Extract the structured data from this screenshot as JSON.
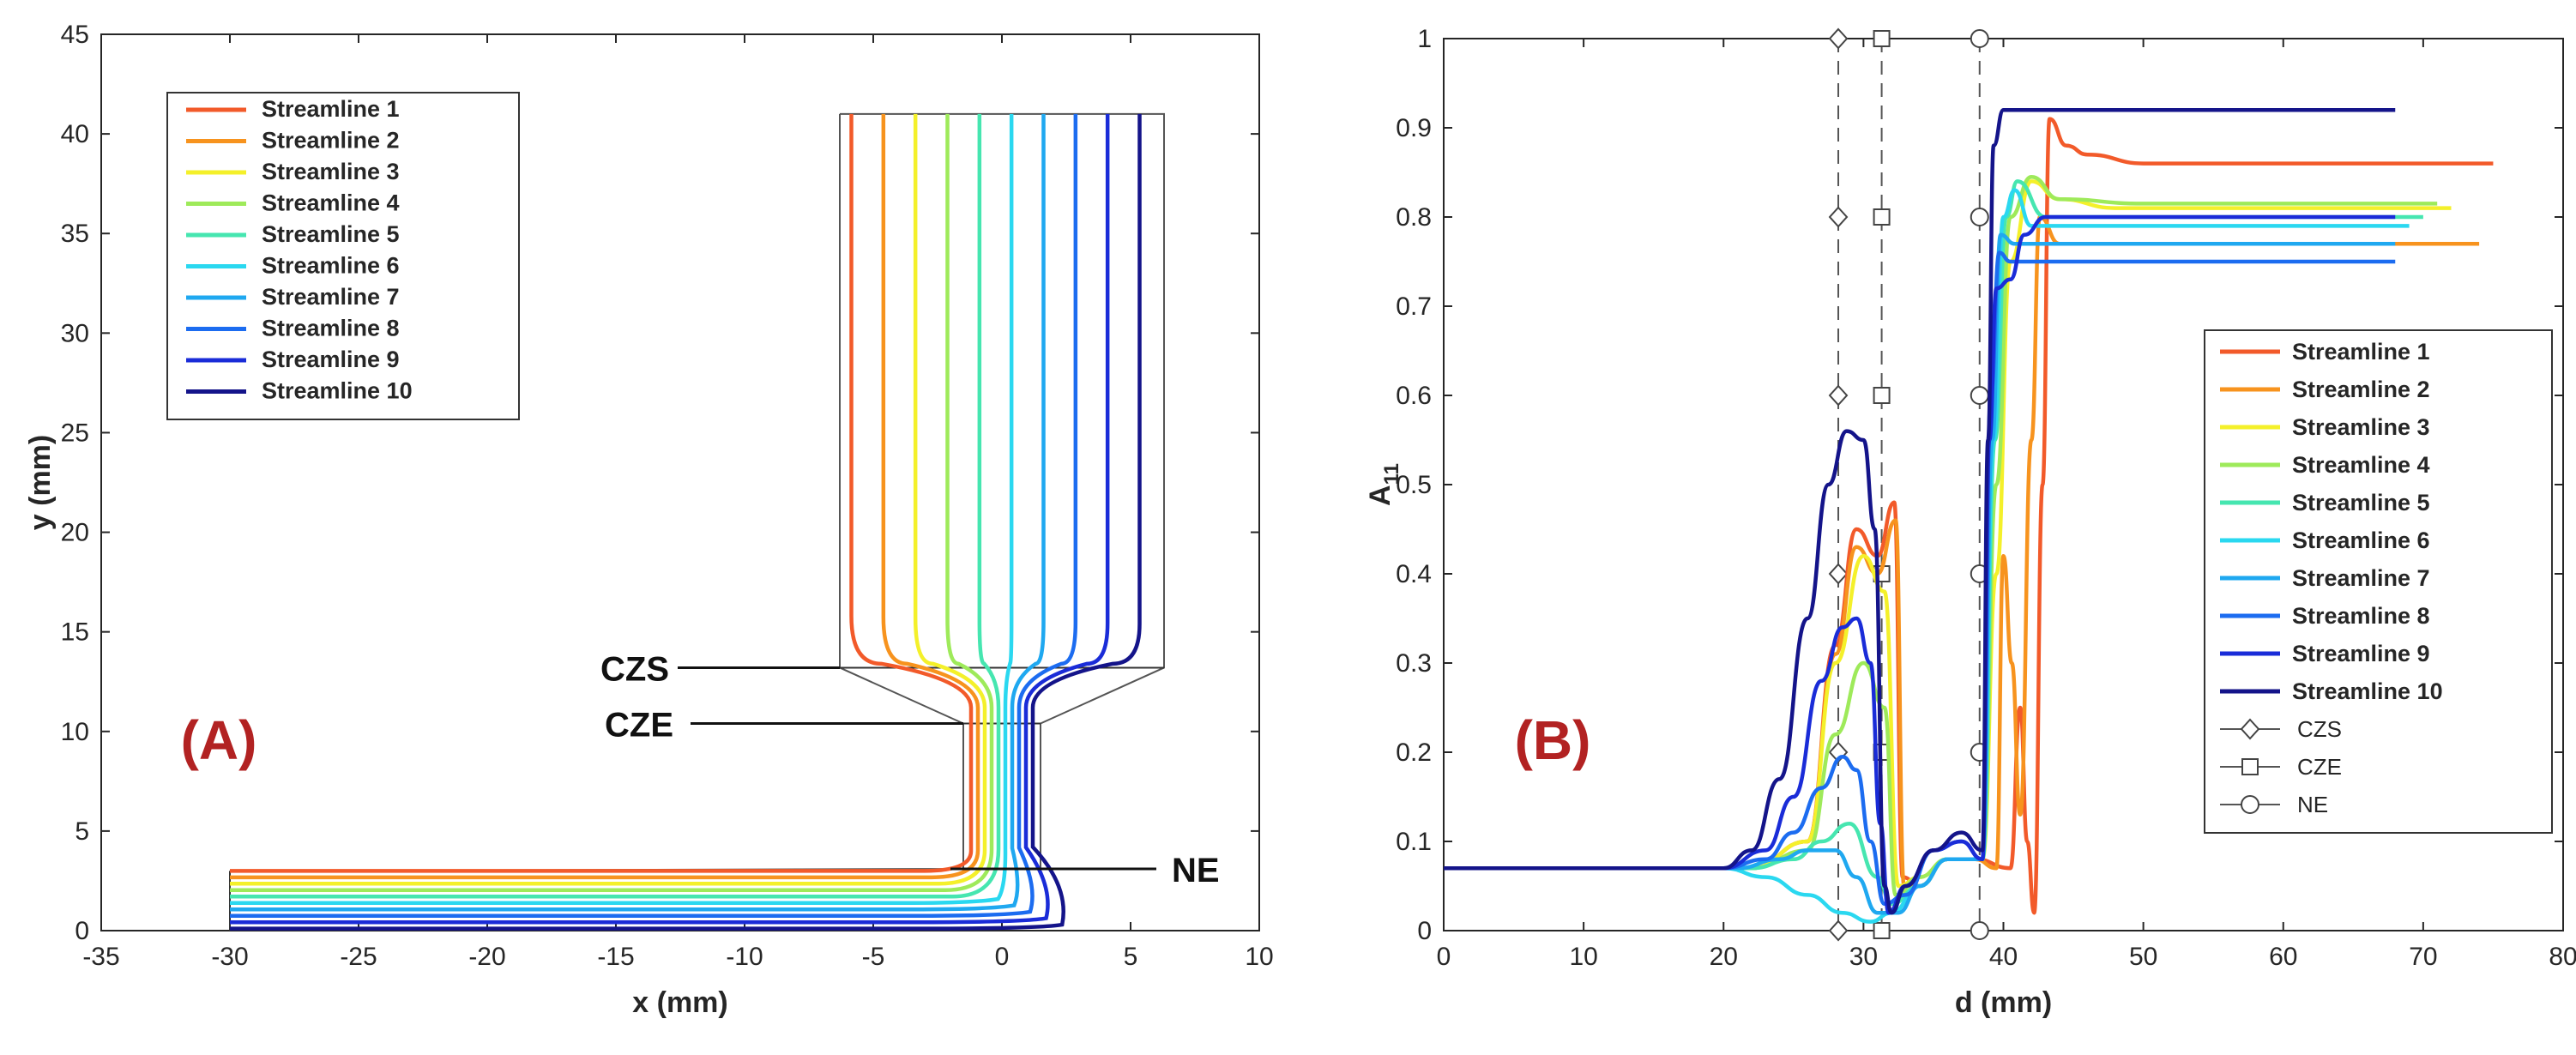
{
  "colors": {
    "streamlines": [
      "#f25a2a",
      "#f7931e",
      "#f4f02a",
      "#9eea5a",
      "#46e6b0",
      "#2ad8f0",
      "#1fa8f0",
      "#1c6cf0",
      "#1a2cd8",
      "#14148a"
    ],
    "panel_label": "#b22222",
    "axes": "#262626"
  },
  "chart_data": [
    {
      "type": "line",
      "panel_label": "(A)",
      "xlabel": "x (mm)",
      "ylabel": "y (mm)",
      "xlim": [
        -35,
        10
      ],
      "ylim": [
        0,
        45
      ],
      "xticks": [
        "-35",
        "-30",
        "-25",
        "-20",
        "-15",
        "-10",
        "-5",
        "0",
        "5",
        "10"
      ],
      "yticks": [
        "0",
        "5",
        "10",
        "15",
        "20",
        "25",
        "30",
        "35",
        "40",
        "45"
      ],
      "legend_position": "top-left",
      "series_names": [
        "Streamline 1",
        "Streamline 2",
        "Streamline 3",
        "Streamline 4",
        "Streamline 5",
        "Streamline 6",
        "Streamline 7",
        "Streamline 8",
        "Streamline 9",
        "Streamline 10"
      ],
      "geometry": {
        "reservoir_x": [
          -6.3,
          6.3
        ],
        "reservoir_top": 41,
        "reservoir_bottom": 13.2,
        "nozzle_x": [
          -1.5,
          1.5
        ],
        "nozzle_top": 10.4,
        "nozzle_bottom": 3.1,
        "channel_x": [
          -30,
          2
        ],
        "channel_y": [
          0,
          3
        ]
      },
      "annotations": [
        {
          "text": "CZS",
          "y": 13.2
        },
        {
          "text": "CZE",
          "y": 10.4
        },
        {
          "text": "NE",
          "y": 3.1
        }
      ]
    },
    {
      "type": "line",
      "panel_label": "(B)",
      "xlabel": "d (mm)",
      "ylabel": "A",
      "ylabel_sub": "11",
      "xlim": [
        0,
        80
      ],
      "ylim": [
        0,
        1
      ],
      "xticks": [
        "0",
        "10",
        "20",
        "30",
        "40",
        "50",
        "60",
        "70",
        "80"
      ],
      "yticks": [
        "0",
        "0.1",
        "0.2",
        "0.3",
        "0.4",
        "0.5",
        "0.6",
        "0.7",
        "0.8",
        "0.9",
        "1"
      ],
      "legend_position": "right",
      "series": [
        {
          "name": "Streamline 1",
          "points": [
            [
              0,
              0.07
            ],
            [
              22,
              0.07
            ],
            [
              26,
              0.1
            ],
            [
              28,
              0.32
            ],
            [
              29.5,
              0.45
            ],
            [
              31,
              0.42
            ],
            [
              32.2,
              0.48
            ],
            [
              32.8,
              0.06
            ],
            [
              34,
              0.05
            ],
            [
              36,
              0.08
            ],
            [
              38,
              0.08
            ],
            [
              40.5,
              0.07
            ],
            [
              41.2,
              0.25
            ],
            [
              41.7,
              0.1
            ],
            [
              42.2,
              0.02
            ],
            [
              42.8,
              0.5
            ],
            [
              43.3,
              0.91
            ],
            [
              44.5,
              0.88
            ],
            [
              46,
              0.87
            ],
            [
              50,
              0.86
            ],
            [
              75,
              0.86
            ]
          ]
        },
        {
          "name": "Streamline 2",
          "points": [
            [
              0,
              0.07
            ],
            [
              22,
              0.07
            ],
            [
              26,
              0.1
            ],
            [
              28,
              0.31
            ],
            [
              29.5,
              0.43
            ],
            [
              31,
              0.4
            ],
            [
              32.3,
              0.46
            ],
            [
              32.9,
              0.05
            ],
            [
              34,
              0.05
            ],
            [
              36,
              0.08
            ],
            [
              38,
              0.08
            ],
            [
              39.5,
              0.07
            ],
            [
              40,
              0.42
            ],
            [
              40.6,
              0.3
            ],
            [
              41.2,
              0.13
            ],
            [
              42,
              0.55
            ],
            [
              42.6,
              0.8
            ],
            [
              44,
              0.77
            ],
            [
              50,
              0.77
            ],
            [
              68,
              0.77
            ],
            [
              74,
              0.77
            ]
          ]
        },
        {
          "name": "Streamline 3",
          "points": [
            [
              0,
              0.07
            ],
            [
              22,
              0.07
            ],
            [
              26,
              0.1
            ],
            [
              28,
              0.3
            ],
            [
              30,
              0.42
            ],
            [
              31.5,
              0.38
            ],
            [
              32.5,
              0.05
            ],
            [
              34,
              0.06
            ],
            [
              36,
              0.08
            ],
            [
              38.5,
              0.08
            ],
            [
              39.5,
              0.4
            ],
            [
              40.5,
              0.75
            ],
            [
              42,
              0.84
            ],
            [
              44,
              0.82
            ],
            [
              48,
              0.81
            ],
            [
              72,
              0.81
            ]
          ]
        },
        {
          "name": "Streamline 4",
          "points": [
            [
              0,
              0.07
            ],
            [
              22,
              0.07
            ],
            [
              26,
              0.09
            ],
            [
              28,
              0.22
            ],
            [
              30,
              0.3
            ],
            [
              31.5,
              0.25
            ],
            [
              32.3,
              0.04
            ],
            [
              34,
              0.06
            ],
            [
              36,
              0.08
            ],
            [
              38.5,
              0.08
            ],
            [
              39.5,
              0.5
            ],
            [
              40.5,
              0.8
            ],
            [
              42,
              0.845
            ],
            [
              44,
              0.82
            ],
            [
              50,
              0.815
            ],
            [
              71,
              0.815
            ]
          ]
        },
        {
          "name": "Streamline 5",
          "points": [
            [
              0,
              0.07
            ],
            [
              22,
              0.07
            ],
            [
              25,
              0.08
            ],
            [
              27,
              0.1
            ],
            [
              29,
              0.12
            ],
            [
              31,
              0.06
            ],
            [
              32,
              0.03
            ],
            [
              34,
              0.05
            ],
            [
              36,
              0.08
            ],
            [
              38.5,
              0.08
            ],
            [
              39.4,
              0.55
            ],
            [
              40.2,
              0.8
            ],
            [
              41,
              0.84
            ],
            [
              43,
              0.8
            ],
            [
              50,
              0.8
            ],
            [
              70,
              0.8
            ]
          ]
        },
        {
          "name": "Streamline 6",
          "points": [
            [
              0,
              0.07
            ],
            [
              20,
              0.07
            ],
            [
              23,
              0.06
            ],
            [
              26,
              0.04
            ],
            [
              28.5,
              0.02
            ],
            [
              30.5,
              0.01
            ],
            [
              32,
              0.02
            ],
            [
              34,
              0.05
            ],
            [
              36,
              0.08
            ],
            [
              38.5,
              0.08
            ],
            [
              39.3,
              0.55
            ],
            [
              40,
              0.8
            ],
            [
              40.8,
              0.83
            ],
            [
              42,
              0.79
            ],
            [
              50,
              0.79
            ],
            [
              69,
              0.79
            ]
          ]
        },
        {
          "name": "Streamline 7",
          "points": [
            [
              0,
              0.07
            ],
            [
              21,
              0.07
            ],
            [
              24,
              0.08
            ],
            [
              26,
              0.09
            ],
            [
              28,
              0.09
            ],
            [
              29.5,
              0.06
            ],
            [
              31,
              0.02
            ],
            [
              32.5,
              0.02
            ],
            [
              34,
              0.05
            ],
            [
              36,
              0.08
            ],
            [
              38.5,
              0.08
            ],
            [
              39.2,
              0.55
            ],
            [
              39.8,
              0.78
            ],
            [
              40.8,
              0.77
            ],
            [
              42,
              0.77
            ],
            [
              50,
              0.77
            ],
            [
              68,
              0.77
            ]
          ]
        },
        {
          "name": "Streamline 8",
          "points": [
            [
              0,
              0.07
            ],
            [
              20,
              0.07
            ],
            [
              23,
              0.08
            ],
            [
              25,
              0.11
            ],
            [
              27,
              0.16
            ],
            [
              28.5,
              0.195
            ],
            [
              29.5,
              0.18
            ],
            [
              30.5,
              0.1
            ],
            [
              31.5,
              0.03
            ],
            [
              33,
              0.04
            ],
            [
              35,
              0.09
            ],
            [
              37,
              0.1
            ],
            [
              38.5,
              0.08
            ],
            [
              39.1,
              0.6
            ],
            [
              39.7,
              0.76
            ],
            [
              40.5,
              0.75
            ],
            [
              45,
              0.75
            ],
            [
              68,
              0.75
            ]
          ]
        },
        {
          "name": "Streamline 9",
          "points": [
            [
              0,
              0.07
            ],
            [
              20,
              0.07
            ],
            [
              23,
              0.09
            ],
            [
              25,
              0.15
            ],
            [
              27,
              0.28
            ],
            [
              28.5,
              0.34
            ],
            [
              29.5,
              0.35
            ],
            [
              30.5,
              0.3
            ],
            [
              31.2,
              0.12
            ],
            [
              31.8,
              0.02
            ],
            [
              33,
              0.05
            ],
            [
              35,
              0.09
            ],
            [
              37,
              0.1
            ],
            [
              38.5,
              0.08
            ],
            [
              39,
              0.55
            ],
            [
              39.5,
              0.72
            ],
            [
              40.5,
              0.73
            ],
            [
              41.5,
              0.78
            ],
            [
              43,
              0.8
            ],
            [
              50,
              0.8
            ],
            [
              68,
              0.8
            ]
          ]
        },
        {
          "name": "Streamline 10",
          "points": [
            [
              0,
              0.07
            ],
            [
              20,
              0.07
            ],
            [
              22,
              0.09
            ],
            [
              24,
              0.17
            ],
            [
              26,
              0.35
            ],
            [
              27.5,
              0.5
            ],
            [
              28.8,
              0.56
            ],
            [
              30,
              0.55
            ],
            [
              30.8,
              0.45
            ],
            [
              31.5,
              0.05
            ],
            [
              32,
              0.02
            ],
            [
              33,
              0.05
            ],
            [
              35,
              0.09
            ],
            [
              37,
              0.11
            ],
            [
              38.5,
              0.09
            ],
            [
              38.9,
              0.55
            ],
            [
              39.3,
              0.88
            ],
            [
              40,
              0.92
            ],
            [
              42,
              0.92
            ],
            [
              68,
              0.92
            ]
          ]
        }
      ],
      "reference_lines": [
        {
          "name": "CZS",
          "x": 28.2,
          "marker": "diamond"
        },
        {
          "name": "CZE",
          "x": 31.3,
          "marker": "square"
        },
        {
          "name": "NE",
          "x": 38.3,
          "marker": "circle"
        }
      ],
      "reference_marker_y": [
        0,
        0.2,
        0.4,
        0.6,
        0.8,
        1.0
      ]
    }
  ]
}
